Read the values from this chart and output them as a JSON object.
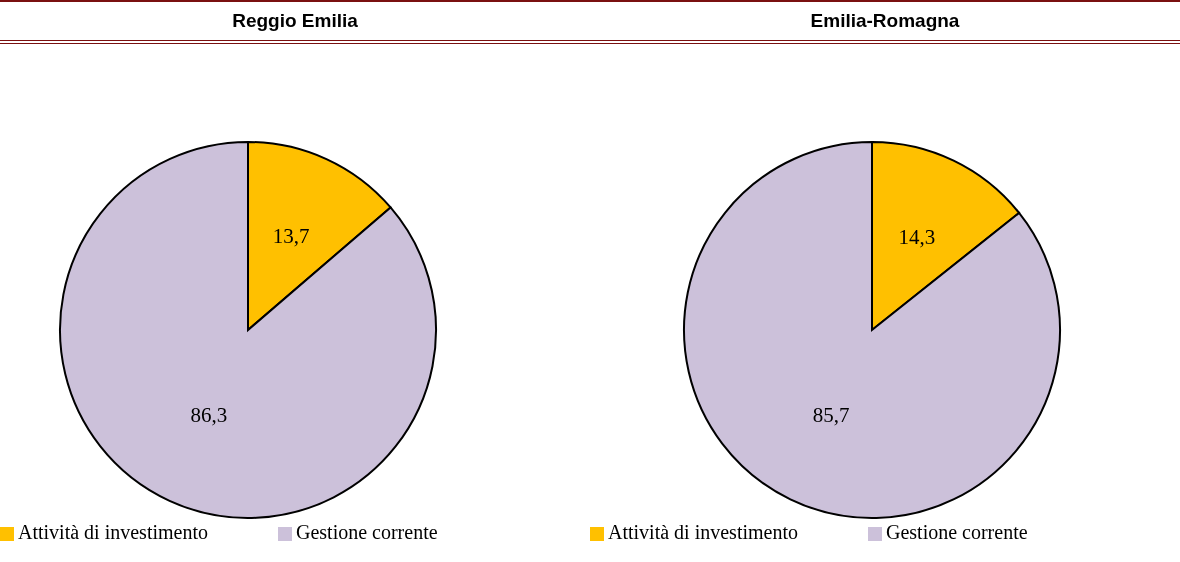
{
  "chart_data": [
    {
      "type": "pie",
      "title": "Reggio Emilia",
      "categories": [
        "Attività di investimento",
        "Gestione corrente"
      ],
      "values": [
        13.7,
        86.3
      ],
      "colors": [
        "#ffc000",
        "#ccc1da"
      ],
      "value_labels": [
        "13,7",
        "86,3"
      ],
      "legend": "bottom"
    },
    {
      "type": "pie",
      "title": "Emilia-Romagna",
      "categories": [
        "Attività di investimento",
        "Gestione corrente"
      ],
      "values": [
        14.3,
        85.7
      ],
      "colors": [
        "#ffc000",
        "#ccc1da"
      ],
      "value_labels": [
        "14,3",
        "85,7"
      ],
      "legend": "bottom"
    }
  ]
}
